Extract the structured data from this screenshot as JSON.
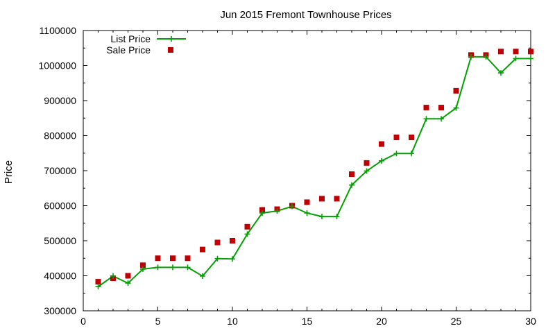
{
  "chart_data": {
    "type": "line",
    "title": "Jun 2015 Fremont Townhouse Prices",
    "xlabel": "",
    "ylabel": "Price",
    "xlim": [
      0,
      30
    ],
    "ylim": [
      300000,
      1100000
    ],
    "xticks": [
      0,
      5,
      10,
      15,
      20,
      25,
      30
    ],
    "yticks": [
      300000,
      400000,
      500000,
      600000,
      700000,
      800000,
      900000,
      1000000,
      1100000
    ],
    "grid": false,
    "legend_position": "top-left",
    "x": [
      1,
      2,
      3,
      4,
      5,
      6,
      7,
      8,
      9,
      10,
      11,
      12,
      13,
      14,
      15,
      16,
      17,
      18,
      19,
      20,
      21,
      22,
      23,
      24,
      25,
      26,
      27,
      28,
      29,
      30
    ],
    "series": [
      {
        "name": "List Price",
        "style": "line-with-plus-markers",
        "color": "#00a000",
        "values": [
          369000,
          399000,
          379000,
          419000,
          424000,
          424000,
          424000,
          399000,
          449000,
          448000,
          519000,
          579000,
          585000,
          598000,
          579000,
          569000,
          569000,
          659000,
          699000,
          728000,
          749000,
          749000,
          848000,
          848000,
          879000,
          1025000,
          1025000,
          979000,
          1020000,
          1020000
        ]
      },
      {
        "name": "Sale Price",
        "style": "square-markers",
        "color": "#c00000",
        "values": [
          383000,
          393000,
          400000,
          430000,
          450000,
          450000,
          450000,
          475000,
          495000,
          500000,
          540000,
          588000,
          590000,
          600000,
          610000,
          620000,
          620000,
          690000,
          722000,
          776000,
          795000,
          795000,
          880000,
          880000,
          928000,
          1030000,
          1030000,
          1040000,
          1040000,
          1040000
        ]
      }
    ]
  }
}
